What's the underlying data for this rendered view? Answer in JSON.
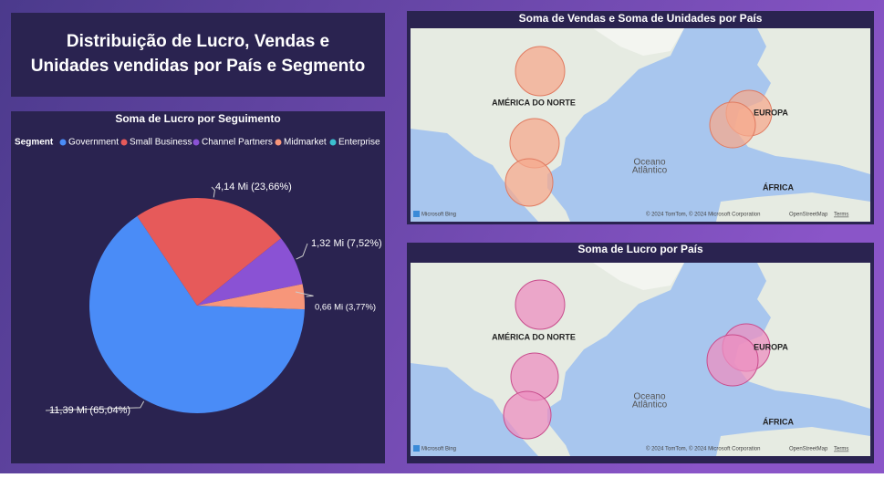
{
  "header": {
    "title": "Distribuição de Lucro, Vendas e Unidades vendidas por País e Segmento"
  },
  "chart_data": {
    "type": "pie",
    "title": "Soma de Lucro por Seguimento",
    "legend_title": "Segment",
    "categories": [
      "Government",
      "Small Business",
      "Channel Partners",
      "Midmarket",
      "Enterprise"
    ],
    "values": [
      11.39,
      4.14,
      1.32,
      0.66,
      0
    ],
    "value_labels": [
      "11,39 Mi (65,04%)",
      "4,14 Mi (23,66%)",
      "1,32 Mi (7,52%)",
      "0,66 Mi (3,77%)",
      null
    ],
    "colors": [
      "#4a8cf7",
      "#e65a5a",
      "#8a52d4",
      "#f7967a",
      "#3bbfcf"
    ],
    "legend": "top-left"
  },
  "maps": [
    {
      "title": "Soma de Vendas e Soma de Unidades por País",
      "labels": [
        "AMÉRICA DO NORTE",
        "EUROPA",
        "Oceano",
        "Atlântico",
        "ÁFRICA"
      ],
      "credits": [
        "Microsoft Bing",
        "© 2024 TomTom, © 2024 Microsoft Corporation",
        "OpenStreetMap",
        "Terms"
      ]
    },
    {
      "title": "Soma de Lucro por País",
      "labels": [
        "AMÉRICA DO NORTE",
        "EUROPA",
        "Oceano",
        "Atlântico",
        "ÁFRICA"
      ],
      "credits": [
        "Microsoft Bing",
        "© 2024 TomTom, © 2024 Microsoft Corporation",
        "OpenStreetMap",
        "Terms"
      ]
    }
  ]
}
